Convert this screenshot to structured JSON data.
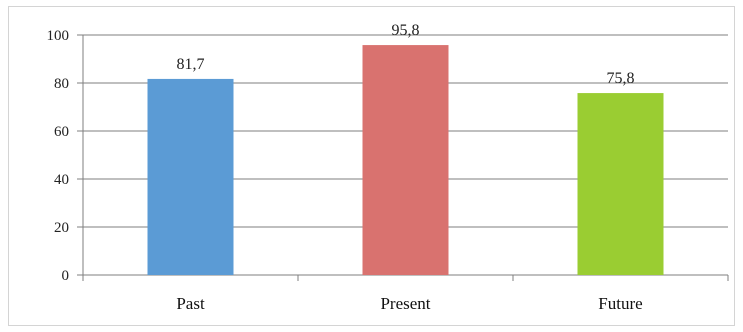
{
  "chart_data": {
    "type": "bar",
    "title": "",
    "xlabel": "",
    "ylabel": "",
    "categories": [
      "Past",
      "Present",
      "Future"
    ],
    "values": [
      81.7,
      95.8,
      75.8
    ],
    "data_labels": [
      "81,7",
      "95,8",
      "75,8"
    ],
    "bar_colors": [
      "#5b9bd5",
      "#d9726f",
      "#9acd32"
    ],
    "ylim": [
      0,
      100
    ],
    "yticks": [
      0,
      20,
      40,
      60,
      80,
      100
    ],
    "ytick_labels": [
      "0",
      "20",
      "40",
      "60",
      "80",
      "100"
    ],
    "grid": true,
    "legend": "none"
  }
}
